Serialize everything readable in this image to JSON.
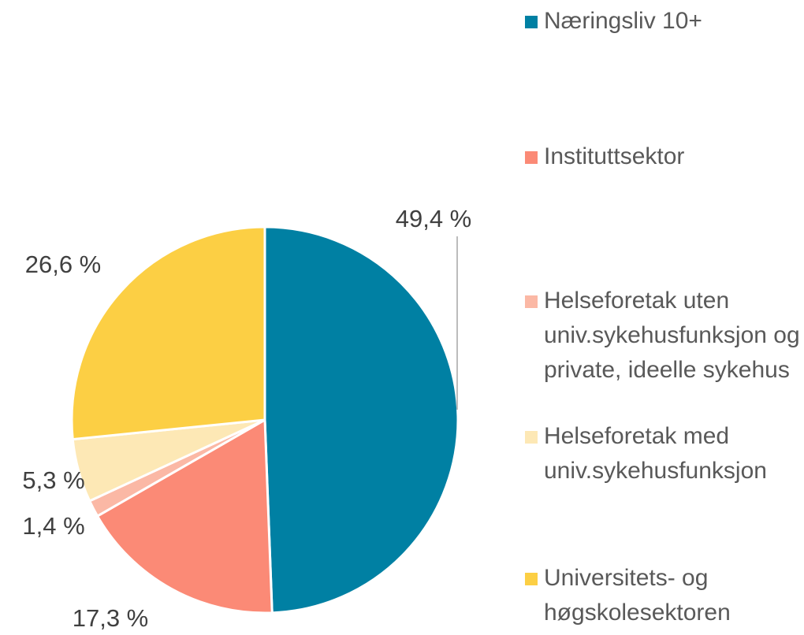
{
  "chart_data": {
    "type": "pie",
    "categories": [
      "Næringsliv 10+",
      "Instituttsektor",
      "Helseforetak uten univ.sykehusfunksjon og private, ideelle sykehus",
      "Helseforetak med univ.sykehusfunksjon",
      "Universitets- og høgskolesektoren"
    ],
    "values": [
      49.4,
      17.3,
      1.4,
      5.3,
      26.6
    ],
    "value_labels": [
      "49,4 %",
      "17,3 %",
      "1,4 %",
      "5,3 %",
      "26,6 %"
    ],
    "colors": [
      "#0080a3",
      "#fb8a76",
      "#fbb8a5",
      "#fde8b5",
      "#fccf44"
    ],
    "legend": "right"
  }
}
